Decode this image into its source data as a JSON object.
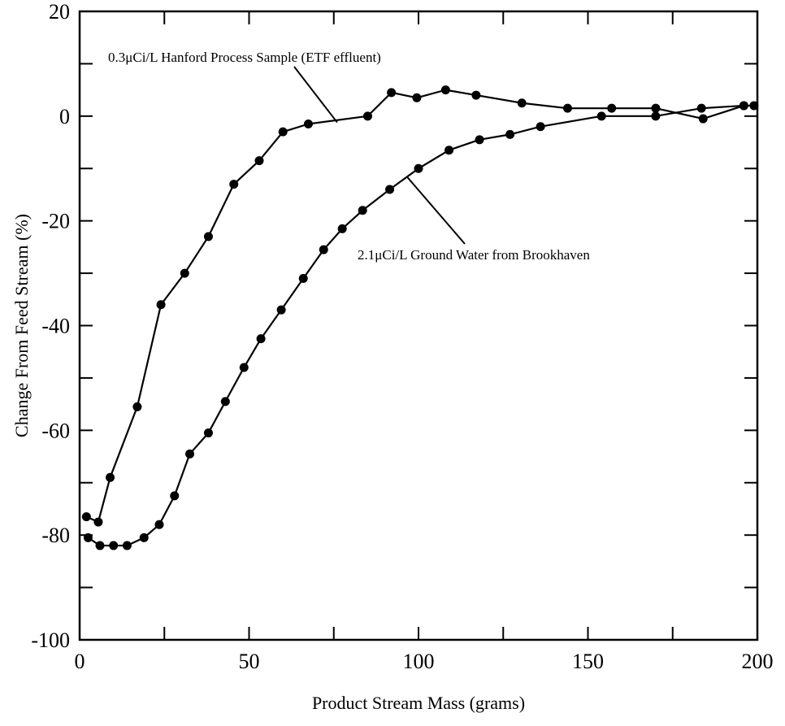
{
  "chart_data": {
    "type": "line",
    "title": "",
    "xlabel": "Product Stream Mass (grams)",
    "ylabel": "Change From Feed Stream (%)",
    "xlim": [
      0,
      200
    ],
    "ylim": [
      -100,
      20
    ],
    "xticks": [
      0,
      50,
      100,
      150,
      200
    ],
    "yticks": [
      -100,
      -80,
      -60,
      -40,
      -20,
      0,
      20
    ],
    "grid": false,
    "legend": "none",
    "marker_color": "#000000",
    "line_color": "#000000",
    "series": [
      {
        "name": "0.3μCi/L Hanford Process Sample (ETF effluent)",
        "x": [
          2,
          5.5,
          9,
          17,
          24,
          31,
          38,
          45.5,
          53,
          60,
          67.5,
          85,
          92,
          99.5,
          108,
          117,
          130.5,
          144,
          157,
          170,
          184,
          196,
          199
        ],
        "y": [
          -76.5,
          -77.5,
          -69,
          -55.5,
          -36,
          -30,
          -23,
          -13,
          -8.5,
          -3,
          -1.5,
          0,
          4.5,
          3.5,
          5,
          4,
          2.5,
          1.5,
          1.5,
          1.5,
          -0.5,
          2,
          2
        ]
      },
      {
        "name": "2.1μCi/L Ground Water from Brookhaven",
        "x": [
          2.5,
          6,
          10,
          14,
          19,
          23.5,
          28,
          32.5,
          38,
          43,
          48.5,
          53.5,
          59.5,
          66,
          72,
          77.5,
          83.5,
          91.5,
          100,
          109,
          118,
          127,
          136,
          154,
          170,
          183.5,
          196
        ],
        "y": [
          -80.5,
          -82,
          -82,
          -82,
          -80.5,
          -78,
          -72.5,
          -64.5,
          -60.5,
          -54.5,
          -48,
          -42.5,
          -37,
          -31,
          -25.5,
          -21.5,
          -18,
          -14,
          -10,
          -6.5,
          -4.5,
          -3.5,
          -2,
          0,
          0,
          1.5,
          2
        ]
      }
    ],
    "annotations": [
      {
        "text": "0.3μCi/L Hanford Process Sample (ETF effluent)",
        "series": 0
      },
      {
        "text": "2.1μCi/L Ground Water from Brookhaven",
        "series": 1
      }
    ]
  }
}
